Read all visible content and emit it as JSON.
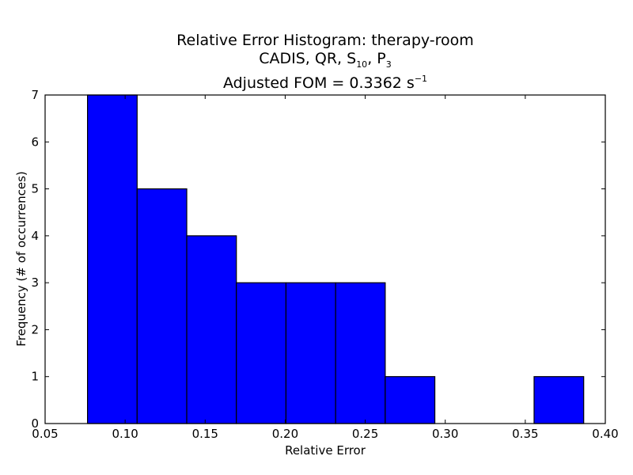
{
  "chart_data": {
    "type": "bar",
    "title": "Relative Error Histogram: therapy-room",
    "subtitle": {
      "prefix": "CADIS, QR, S",
      "s_sub": "10",
      "mid": ", P",
      "p_sub": "3"
    },
    "fom": {
      "prefix": "Adjusted FOM = 0.3362 s",
      "sup": "−1"
    },
    "xlabel": "Relative Error",
    "ylabel": "Frequency (# of occurrences)",
    "xlim": [
      0.05,
      0.4
    ],
    "ylim": [
      0,
      7
    ],
    "xticks": [
      0.05,
      0.1,
      0.15,
      0.2,
      0.25,
      0.3,
      0.35,
      0.4
    ],
    "xtick_labels": [
      "0.05",
      "0.10",
      "0.15",
      "0.20",
      "0.25",
      "0.30",
      "0.35",
      "0.40"
    ],
    "yticks": [
      0,
      1,
      2,
      3,
      4,
      5,
      6,
      7
    ],
    "ytick_labels": [
      "0",
      "1",
      "2",
      "3",
      "4",
      "5",
      "6",
      "7"
    ],
    "bins": [
      {
        "x0": 0.0765,
        "x1": 0.1075,
        "value": 7
      },
      {
        "x0": 0.1075,
        "x1": 0.1385,
        "value": 5
      },
      {
        "x0": 0.1385,
        "x1": 0.1695,
        "value": 4
      },
      {
        "x0": 0.1695,
        "x1": 0.2005,
        "value": 3
      },
      {
        "x0": 0.2005,
        "x1": 0.2315,
        "value": 3
      },
      {
        "x0": 0.2315,
        "x1": 0.2625,
        "value": 3
      },
      {
        "x0": 0.2625,
        "x1": 0.2935,
        "value": 1
      },
      {
        "x0": 0.2935,
        "x1": 0.3245,
        "value": 0
      },
      {
        "x0": 0.3245,
        "x1": 0.3555,
        "value": 0
      },
      {
        "x0": 0.3555,
        "x1": 0.3865,
        "value": 1
      }
    ],
    "bar_color": "#0000ff",
    "edge_color": "#000000",
    "grid": false,
    "legend": "none"
  }
}
